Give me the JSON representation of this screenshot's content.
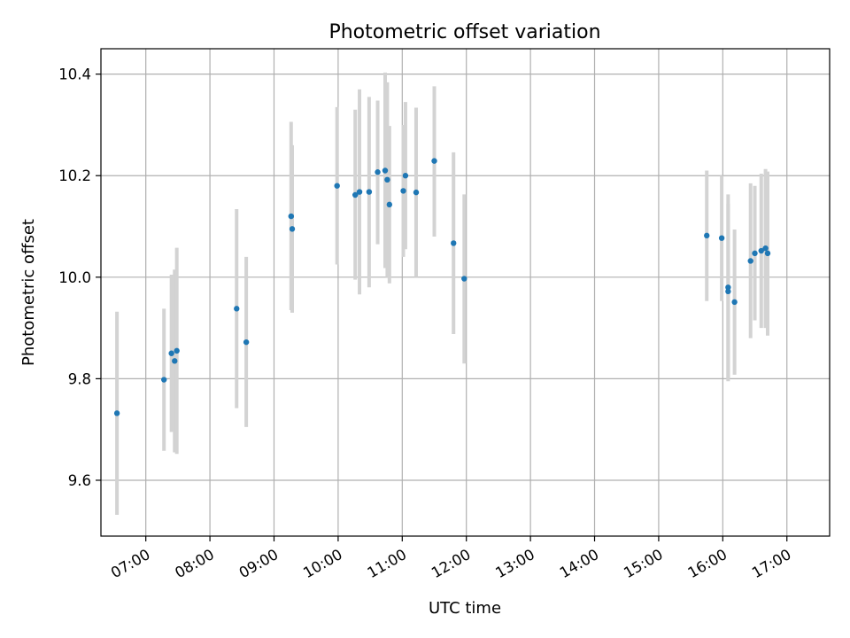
{
  "chart_data": {
    "type": "scatter",
    "title": "Photometric offset variation",
    "xlabel": "UTC time",
    "ylabel": "Photometric offset",
    "x_unit": "time of day (HH:MM)",
    "xlim": [
      "06:18",
      "17:40"
    ],
    "ylim": [
      9.49,
      10.45
    ],
    "x_ticks": [
      "07:00",
      "08:00",
      "09:00",
      "10:00",
      "11:00",
      "12:00",
      "13:00",
      "14:00",
      "15:00",
      "16:00",
      "17:00"
    ],
    "y_ticks": [
      9.6,
      9.8,
      10.0,
      10.2,
      10.4
    ],
    "y_tick_labels": [
      "9.6",
      "9.8",
      "10.0",
      "10.2",
      "10.4"
    ],
    "grid": true,
    "point_color": "#1f77b4",
    "errorbar_color": "#d3d3d3",
    "points": [
      {
        "x": "06:33",
        "y": 9.732,
        "lo": 9.532,
        "hi": 9.932
      },
      {
        "x": "07:17",
        "y": 9.798,
        "lo": 9.658,
        "hi": 9.938
      },
      {
        "x": "07:24",
        "y": 9.85,
        "lo": 9.695,
        "hi": 10.005
      },
      {
        "x": "07:27",
        "y": 9.835,
        "lo": 9.655,
        "hi": 10.015
      },
      {
        "x": "07:29",
        "y": 9.855,
        "lo": 9.652,
        "hi": 10.058
      },
      {
        "x": "08:25",
        "y": 9.938,
        "lo": 9.742,
        "hi": 10.134
      },
      {
        "x": "08:34",
        "y": 9.872,
        "lo": 9.705,
        "hi": 10.04
      },
      {
        "x": "09:16",
        "y": 10.12,
        "lo": 9.935,
        "hi": 10.306
      },
      {
        "x": "09:17",
        "y": 10.095,
        "lo": 9.93,
        "hi": 10.26
      },
      {
        "x": "09:59",
        "y": 10.18,
        "lo": 10.025,
        "hi": 10.335
      },
      {
        "x": "10:16",
        "y": 10.162,
        "lo": 9.995,
        "hi": 10.33
      },
      {
        "x": "10:20",
        "y": 10.168,
        "lo": 9.966,
        "hi": 10.37
      },
      {
        "x": "10:29",
        "y": 10.168,
        "lo": 9.98,
        "hi": 10.355
      },
      {
        "x": "10:37",
        "y": 10.207,
        "lo": 10.065,
        "hi": 10.348
      },
      {
        "x": "10:44",
        "y": 10.21,
        "lo": 10.018,
        "hi": 10.403
      },
      {
        "x": "10:46",
        "y": 10.192,
        "lo": 10.0,
        "hi": 10.384
      },
      {
        "x": "10:48",
        "y": 10.143,
        "lo": 9.988,
        "hi": 10.298
      },
      {
        "x": "11:01",
        "y": 10.17,
        "lo": 10.04,
        "hi": 10.3
      },
      {
        "x": "11:03",
        "y": 10.2,
        "lo": 10.055,
        "hi": 10.345
      },
      {
        "x": "11:13",
        "y": 10.167,
        "lo": 10.0,
        "hi": 10.334
      },
      {
        "x": "11:30",
        "y": 10.229,
        "lo": 10.08,
        "hi": 10.376
      },
      {
        "x": "11:48",
        "y": 10.067,
        "lo": 9.888,
        "hi": 10.246
      },
      {
        "x": "11:58",
        "y": 9.997,
        "lo": 9.83,
        "hi": 10.163
      },
      {
        "x": "15:45",
        "y": 10.082,
        "lo": 9.953,
        "hi": 10.21
      },
      {
        "x": "15:59",
        "y": 10.077,
        "lo": 9.953,
        "hi": 10.2
      },
      {
        "x": "16:05",
        "y": 9.98,
        "lo": 9.795,
        "hi": 10.163
      },
      {
        "x": "16:05",
        "y": 9.972,
        "lo": 9.8,
        "hi": 10.145
      },
      {
        "x": "16:11",
        "y": 9.951,
        "lo": 9.808,
        "hi": 10.094
      },
      {
        "x": "16:26",
        "y": 10.032,
        "lo": 9.88,
        "hi": 10.185
      },
      {
        "x": "16:30",
        "y": 10.047,
        "lo": 9.915,
        "hi": 10.18
      },
      {
        "x": "16:36",
        "y": 10.052,
        "lo": 9.9,
        "hi": 10.204
      },
      {
        "x": "16:40",
        "y": 10.057,
        "lo": 9.9,
        "hi": 10.213
      },
      {
        "x": "16:42",
        "y": 10.047,
        "lo": 9.885,
        "hi": 10.208
      }
    ]
  }
}
